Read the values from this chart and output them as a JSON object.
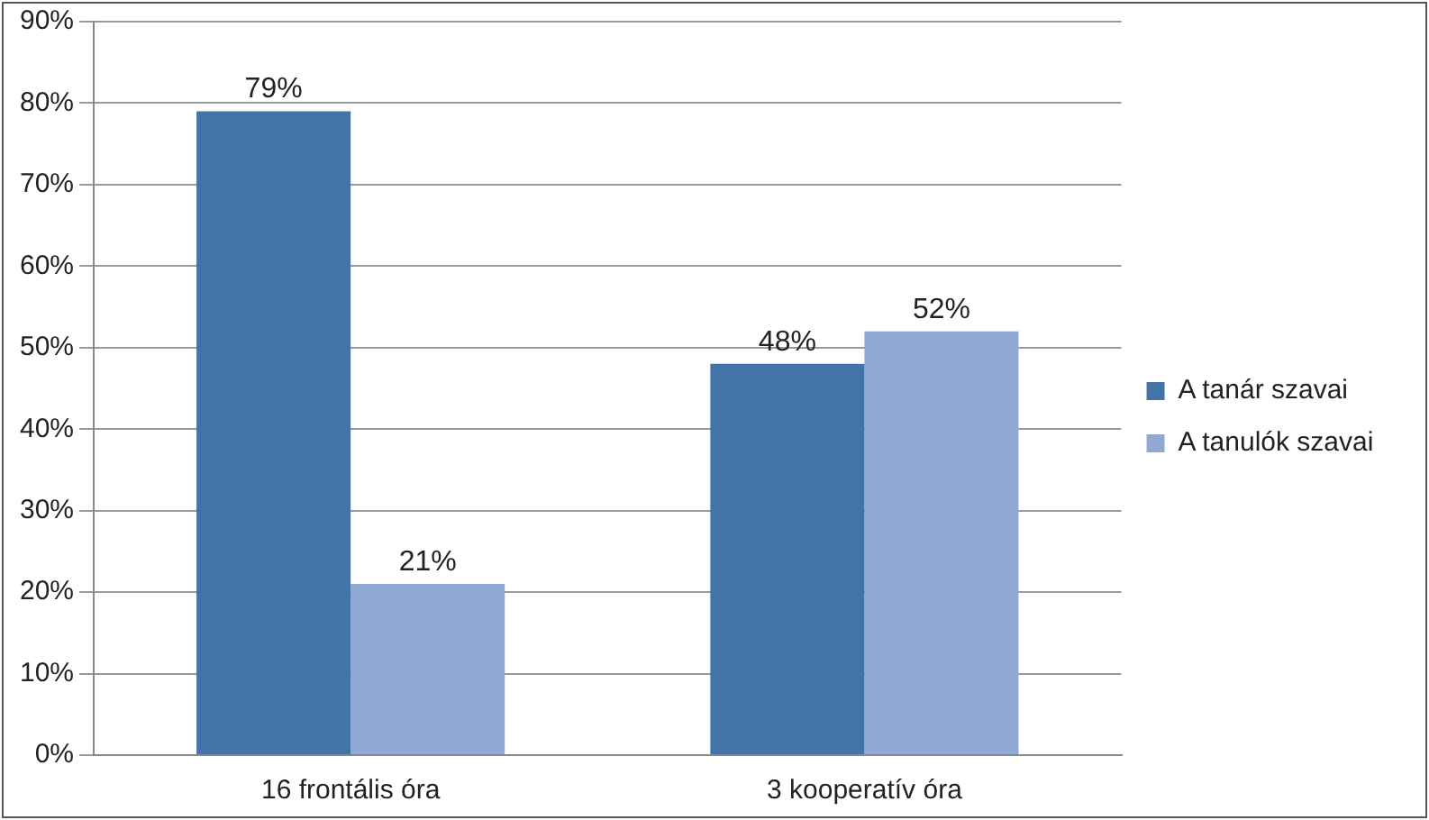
{
  "chart_data": {
    "type": "bar",
    "categories": [
      "16 frontális óra",
      "3 kooperatív óra"
    ],
    "series": [
      {
        "name": "A tanár szavai",
        "color": "#4473a8",
        "values": [
          79,
          48
        ],
        "value_labels": [
          "79%",
          "48%"
        ]
      },
      {
        "name": "A tanulók szavai",
        "color": "#8fa9d2",
        "values": [
          21,
          52
        ],
        "value_labels": [
          "21%",
          "52%"
        ]
      }
    ],
    "ylim": [
      0,
      90
    ],
    "yticks": [
      {
        "value": 0,
        "label": "0%"
      },
      {
        "value": 10,
        "label": "10%"
      },
      {
        "value": 20,
        "label": "20%"
      },
      {
        "value": 30,
        "label": "30%"
      },
      {
        "value": 40,
        "label": "40%"
      },
      {
        "value": 50,
        "label": "50%"
      },
      {
        "value": 60,
        "label": "60%"
      },
      {
        "value": 70,
        "label": "70%"
      },
      {
        "value": 80,
        "label": "80%"
      },
      {
        "value": 90,
        "label": "90%"
      }
    ],
    "grid": "y",
    "legend": "right"
  }
}
